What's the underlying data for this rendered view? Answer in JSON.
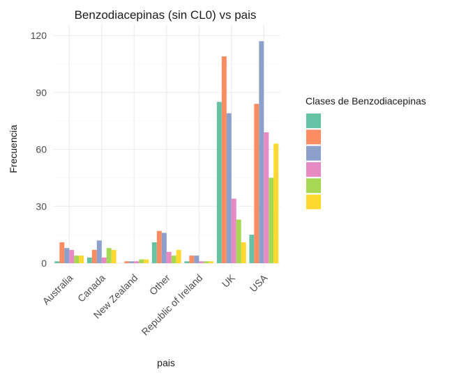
{
  "chart_data": {
    "type": "bar",
    "title": "Benzodiacepinas (sin CL0) vs pais",
    "xlabel": "pais",
    "ylabel": "Frecuencia",
    "categories": [
      "Australia",
      "Canada",
      "New Zealand",
      "Other",
      "Republic of Ireland",
      "UK",
      "USA"
    ],
    "yticks": [
      "0",
      "30",
      "60",
      "90",
      "120"
    ],
    "ylim": [
      0,
      123
    ],
    "grid": true,
    "legend": {
      "title": "Clases de Benzodiacepinas",
      "position": "right"
    },
    "series": [
      {
        "name": "",
        "color": "#66C2A5",
        "values": [
          1,
          3,
          0,
          11,
          1,
          85,
          15
        ]
      },
      {
        "name": "",
        "color": "#FC8D62",
        "values": [
          11,
          7,
          1,
          17,
          4,
          109,
          84
        ]
      },
      {
        "name": "",
        "color": "#8DA0CB",
        "values": [
          8,
          12,
          1,
          16,
          4,
          79,
          117
        ]
      },
      {
        "name": "",
        "color": "#E78AC3",
        "values": [
          7,
          3,
          1,
          6,
          1,
          34,
          69
        ]
      },
      {
        "name": "",
        "color": "#A6D854",
        "values": [
          4,
          8,
          2,
          4,
          1,
          23,
          45
        ]
      },
      {
        "name": "",
        "color": "#FFD92F",
        "values": [
          4,
          7,
          2,
          7,
          1,
          11,
          63
        ]
      }
    ]
  }
}
